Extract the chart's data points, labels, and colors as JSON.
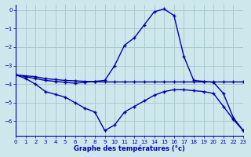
{
  "xlabel": "Graphe des températures (°c)",
  "bg_color": "#cce8ec",
  "grid_color": "#aacccc",
  "line_color": "#0000aa",
  "xlim": [
    0,
    23
  ],
  "ylim": [
    -6.8,
    0.3
  ],
  "yticks": [
    0,
    -1,
    -2,
    -3,
    -4,
    -5,
    -6
  ],
  "xticks": [
    0,
    1,
    2,
    3,
    4,
    5,
    6,
    7,
    8,
    9,
    10,
    11,
    12,
    13,
    14,
    15,
    16,
    17,
    18,
    19,
    20,
    21,
    22,
    23
  ],
  "curve1_x": [
    0,
    1,
    2,
    3,
    4,
    5,
    6,
    7,
    8,
    9,
    10,
    11,
    12,
    13,
    14,
    15,
    16,
    17,
    18,
    19,
    20,
    21,
    22,
    23
  ],
  "curve1_y": [
    -3.5,
    -3.6,
    -3.7,
    -3.8,
    -3.85,
    -3.9,
    -3.95,
    -3.9,
    -3.85,
    -3.8,
    -3.0,
    -1.9,
    -1.5,
    -0.8,
    -0.1,
    0.05,
    -0.3,
    -2.5,
    -3.8,
    -3.85,
    -3.9,
    -4.5,
    -5.8,
    -6.5
  ],
  "curve2_x": [
    0,
    1,
    2,
    3,
    4,
    5,
    6,
    7,
    8,
    9,
    10,
    11,
    12,
    13,
    14,
    15,
    16,
    17,
    18,
    19,
    20,
    21,
    22,
    23
  ],
  "curve2_y": [
    -3.5,
    -3.55,
    -3.6,
    -3.7,
    -3.75,
    -3.8,
    -3.82,
    -3.85,
    -3.87,
    -3.88,
    -3.88,
    -3.88,
    -3.88,
    -3.88,
    -3.88,
    -3.88,
    -3.88,
    -3.88,
    -3.88,
    -3.88,
    -3.88,
    -3.88,
    -3.88,
    -3.88
  ],
  "curve3_x": [
    0,
    1,
    2,
    3,
    4,
    5,
    6,
    7,
    8,
    9,
    10,
    11,
    12,
    13,
    14,
    15,
    16,
    17,
    18,
    19,
    20,
    21,
    22,
    23
  ],
  "curve3_y": [
    -3.5,
    -3.7,
    -4.0,
    -4.4,
    -4.55,
    -4.7,
    -5.0,
    -5.3,
    -5.5,
    -6.5,
    -6.2,
    -5.5,
    -5.2,
    -4.9,
    -4.6,
    -4.4,
    -4.3,
    -4.3,
    -4.35,
    -4.4,
    -4.5,
    -5.2,
    -5.9,
    -6.5
  ]
}
